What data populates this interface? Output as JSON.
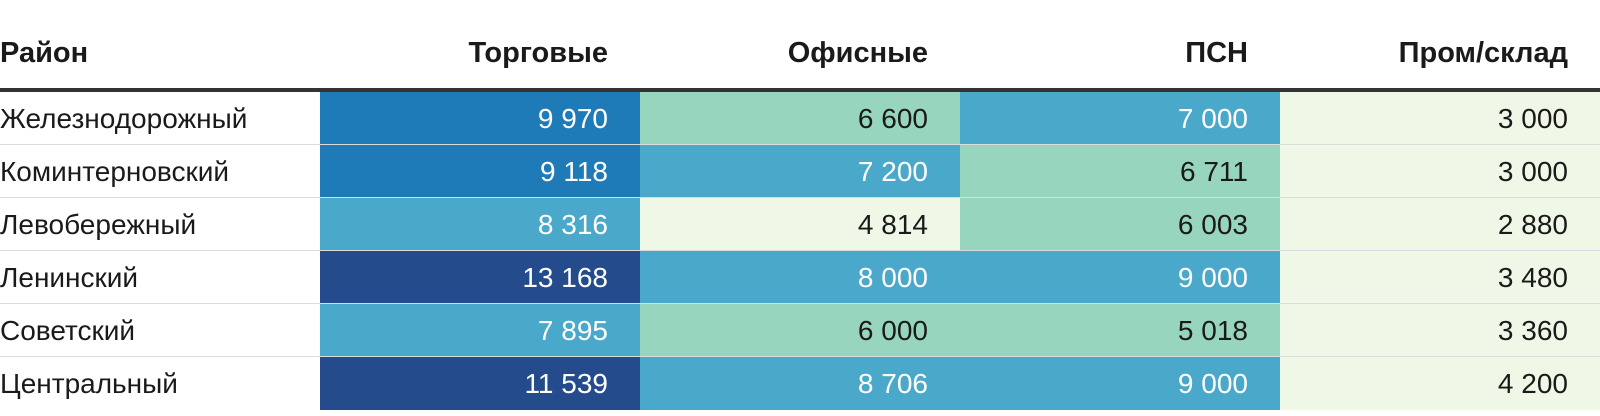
{
  "chart_data": {
    "type": "table",
    "columns": [
      "Район",
      "Торговые",
      "Офисные",
      "ПСН",
      "Пром/склад"
    ],
    "rows": [
      {
        "district": "Железнодорожный",
        "values": [
          "9 970",
          "6 600",
          "7 000",
          "3 000"
        ],
        "numeric": [
          9970,
          6600,
          7000,
          3000
        ],
        "colors": [
          "#1f7ab8",
          "#97d5be",
          "#4aa8ca",
          "#eff8e6"
        ]
      },
      {
        "district": "Коминтерновский",
        "values": [
          "9 118",
          "7 200",
          "6 711",
          "3 000"
        ],
        "numeric": [
          9118,
          7200,
          6711,
          3000
        ],
        "colors": [
          "#1f7ab8",
          "#4aa8ca",
          "#97d5be",
          "#eff8e6"
        ]
      },
      {
        "district": "Левобережный",
        "values": [
          "8 316",
          "4 814",
          "6 003",
          "2 880"
        ],
        "numeric": [
          8316,
          4814,
          6003,
          2880
        ],
        "colors": [
          "#4aa8ca",
          "#eff8e6",
          "#97d5be",
          "#eff8e6"
        ]
      },
      {
        "district": "Ленинский",
        "values": [
          "13 168",
          "8 000",
          "9 000",
          "3 480"
        ],
        "numeric": [
          13168,
          8000,
          9000,
          3480
        ],
        "colors": [
          "#244b8c",
          "#4aa8ca",
          "#4aa8ca",
          "#eff8e6"
        ]
      },
      {
        "district": "Советский",
        "values": [
          "7 895",
          "6 000",
          "5 018",
          "3 360"
        ],
        "numeric": [
          7895,
          6000,
          5018,
          3360
        ],
        "colors": [
          "#4aa8ca",
          "#97d5be",
          "#97d5be",
          "#eff8e6"
        ]
      },
      {
        "district": "Центральный",
        "values": [
          "11 539",
          "8 706",
          "9 000",
          "4 200"
        ],
        "numeric": [
          11539,
          8706,
          9000,
          4200
        ],
        "colors": [
          "#244b8c",
          "#4aa8ca",
          "#4aa8ca",
          "#eff8e6"
        ]
      }
    ],
    "text_colors": {
      "on_dark": "#ffffff",
      "on_light": "#1a1a1a"
    },
    "light_fills": [
      "#97d5be",
      "#eff8e6"
    ]
  }
}
